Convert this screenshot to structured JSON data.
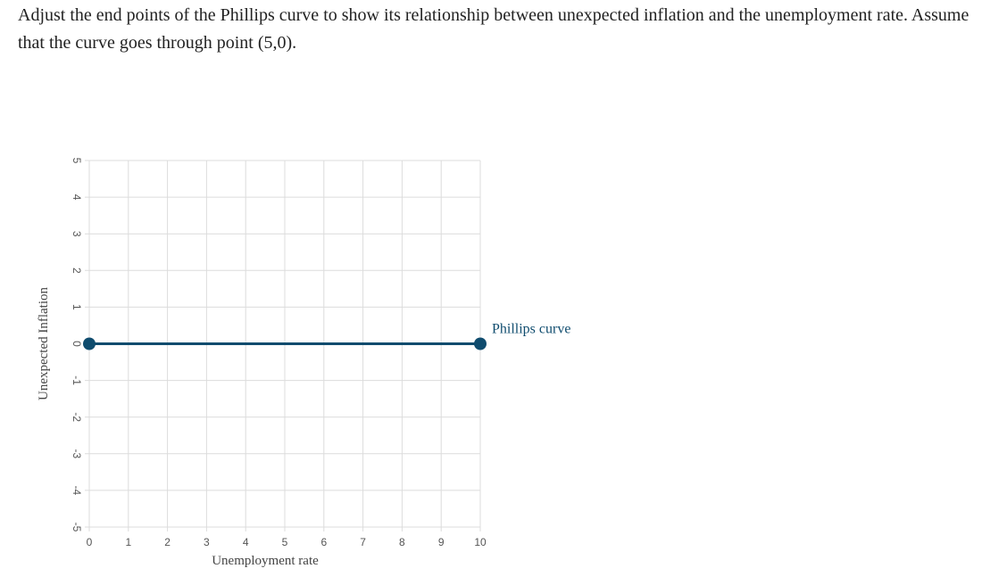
{
  "question": {
    "text": "Adjust the end points of the Phillips curve to show its relationship between unexpected inflation and the unemployment rate. Assume that the curve goes through point (5,0)."
  },
  "chart_data": {
    "type": "line",
    "xlabel": "Unemployment rate",
    "ylabel": "Unexpected Inflation",
    "xlim": [
      0,
      10
    ],
    "ylim": [
      -5,
      5
    ],
    "x_ticks": [
      "0",
      "1",
      "2",
      "3",
      "4",
      "5",
      "6",
      "7",
      "8",
      "9",
      "10"
    ],
    "y_ticks": [
      "5",
      "4",
      "3",
      "2",
      "1",
      "0",
      "-1",
      "-2",
      "-3",
      "-4",
      "-5"
    ],
    "grid": true,
    "series": [
      {
        "name": "Phillips curve",
        "color": "#0f4c6e",
        "points": [
          {
            "x": 0,
            "y": 0
          },
          {
            "x": 10,
            "y": 0
          }
        ]
      }
    ]
  }
}
